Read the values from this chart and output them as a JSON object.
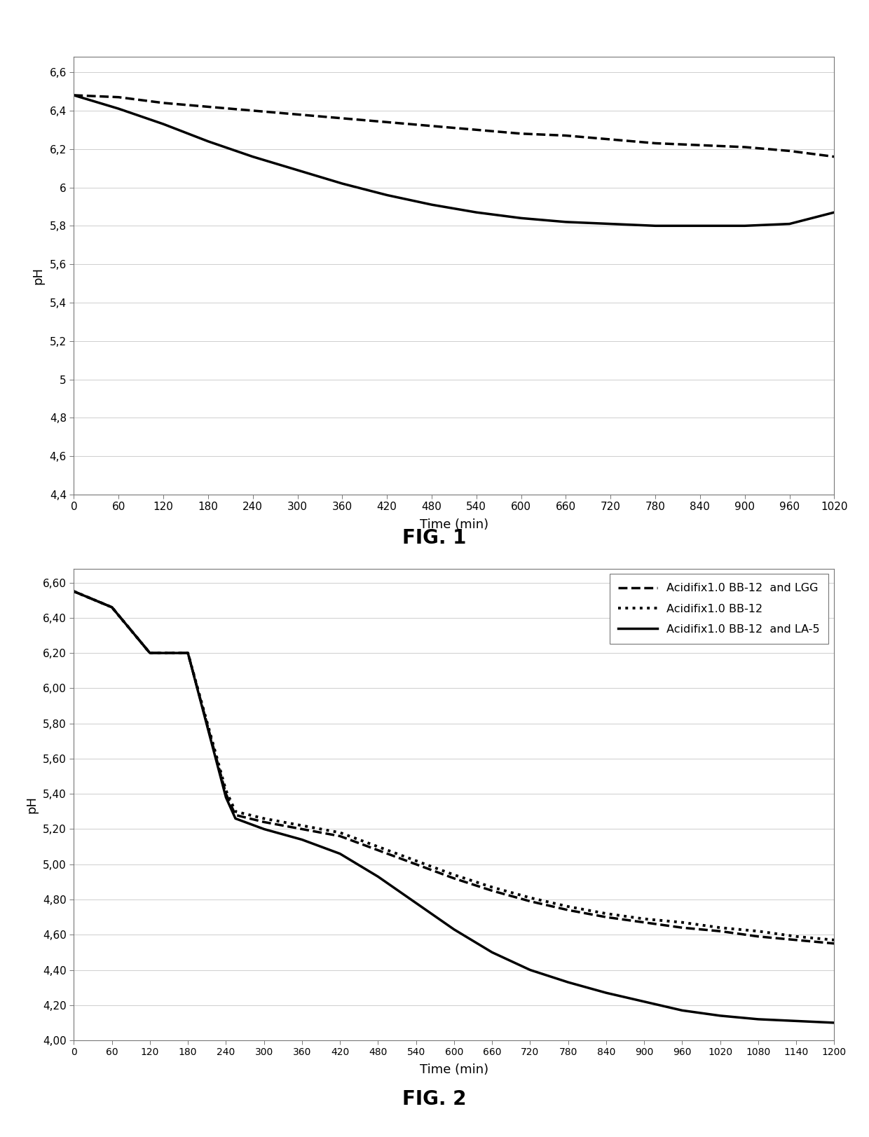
{
  "fig1": {
    "title": "FIG. 1",
    "xlabel": "Time (min)",
    "ylabel": "pH",
    "xlim": [
      0,
      1020
    ],
    "ylim": [
      4.4,
      6.68
    ],
    "xticks": [
      0,
      60,
      120,
      180,
      240,
      300,
      360,
      420,
      480,
      540,
      600,
      660,
      720,
      780,
      840,
      900,
      960,
      1020
    ],
    "yticks": [
      4.4,
      4.6,
      4.8,
      5.0,
      5.2,
      5.4,
      5.6,
      5.8,
      6.0,
      6.2,
      6.4,
      6.6
    ],
    "ytick_labels": [
      "4,4",
      "4,6",
      "4,8",
      "5",
      "5,2",
      "5,4",
      "5,6",
      "5,8",
      "6",
      "6,2",
      "6,4",
      "6,6"
    ],
    "series": [
      {
        "name": "dashed",
        "style": "--",
        "color": "#000000",
        "linewidth": 2.5,
        "x": [
          0,
          60,
          120,
          180,
          240,
          300,
          360,
          420,
          480,
          540,
          600,
          660,
          720,
          780,
          840,
          900,
          960,
          1020
        ],
        "y": [
          6.48,
          6.47,
          6.44,
          6.42,
          6.4,
          6.38,
          6.36,
          6.34,
          6.32,
          6.3,
          6.28,
          6.27,
          6.25,
          6.23,
          6.22,
          6.21,
          6.19,
          6.16
        ]
      },
      {
        "name": "solid",
        "style": "-",
        "color": "#000000",
        "linewidth": 2.5,
        "x": [
          0,
          60,
          120,
          180,
          240,
          300,
          360,
          420,
          480,
          540,
          600,
          660,
          720,
          780,
          840,
          900,
          960,
          1020
        ],
        "y": [
          6.48,
          6.41,
          6.33,
          6.24,
          6.16,
          6.09,
          6.02,
          5.96,
          5.91,
          5.87,
          5.84,
          5.82,
          5.81,
          5.8,
          5.8,
          5.8,
          5.81,
          5.87
        ]
      }
    ]
  },
  "fig2": {
    "title": "FIG. 2",
    "xlabel": "Time (min)",
    "ylabel": "pH",
    "xlim": [
      0,
      1200
    ],
    "ylim": [
      4.0,
      6.68
    ],
    "xticks": [
      0,
      60,
      120,
      180,
      240,
      300,
      360,
      420,
      480,
      540,
      600,
      660,
      720,
      780,
      840,
      900,
      960,
      1020,
      1080,
      1140,
      1200
    ],
    "xtick_labels": [
      "0",
      "60",
      "120",
      "180",
      "240",
      "300",
      "360",
      "420",
      "480",
      "540",
      "600",
      "660",
      "720",
      "780",
      "840",
      "900",
      "960",
      "1020",
      "1080",
      "1140",
      "1200"
    ],
    "yticks": [
      4.0,
      4.2,
      4.4,
      4.6,
      4.8,
      5.0,
      5.2,
      5.4,
      5.6,
      5.8,
      6.0,
      6.2,
      6.4,
      6.6
    ],
    "ytick_labels": [
      "4,00",
      "4,20",
      "4,40",
      "4,60",
      "4,80",
      "5,00",
      "5,20",
      "5,40",
      "5,60",
      "5,80",
      "6,00",
      "6,20",
      "6,40",
      "6,60"
    ],
    "legend": [
      {
        "label": "Acidifix1.0 BB-12  and LGG",
        "style": "--",
        "linewidth": 2.5
      },
      {
        "label": "Acidifix1.0 BB-12",
        "style": ":",
        "linewidth": 2.8
      },
      {
        "label": "Acidifix1.0 BB-12  and LA-5",
        "style": "-",
        "linewidth": 2.5
      }
    ],
    "series": [
      {
        "name": "dashed_lgg",
        "x": [
          0,
          60,
          120,
          180,
          240,
          255,
          300,
          360,
          420,
          480,
          540,
          600,
          660,
          720,
          780,
          840,
          900,
          960,
          1020,
          1080,
          1140,
          1200
        ],
        "y": [
          6.55,
          6.46,
          6.2,
          6.2,
          5.4,
          5.28,
          5.24,
          5.2,
          5.16,
          5.08,
          5.0,
          4.92,
          4.85,
          4.79,
          4.74,
          4.7,
          4.67,
          4.64,
          4.62,
          4.59,
          4.57,
          4.55
        ]
      },
      {
        "name": "dotted_bb12",
        "x": [
          0,
          60,
          120,
          180,
          240,
          255,
          300,
          360,
          420,
          480,
          540,
          600,
          660,
          720,
          780,
          840,
          900,
          960,
          1020,
          1080,
          1140,
          1200
        ],
        "y": [
          6.55,
          6.46,
          6.2,
          6.2,
          5.42,
          5.3,
          5.26,
          5.22,
          5.18,
          5.1,
          5.02,
          4.94,
          4.87,
          4.81,
          4.76,
          4.72,
          4.69,
          4.67,
          4.64,
          4.62,
          4.59,
          4.57
        ]
      },
      {
        "name": "solid_la5",
        "x": [
          0,
          60,
          120,
          180,
          240,
          255,
          300,
          360,
          420,
          480,
          540,
          600,
          660,
          720,
          780,
          840,
          900,
          960,
          1020,
          1080,
          1140,
          1200
        ],
        "y": [
          6.55,
          6.46,
          6.2,
          6.2,
          5.38,
          5.26,
          5.2,
          5.14,
          5.06,
          4.93,
          4.78,
          4.63,
          4.5,
          4.4,
          4.33,
          4.27,
          4.22,
          4.17,
          4.14,
          4.12,
          4.11,
          4.1
        ]
      }
    ]
  },
  "background_color": "#ffffff",
  "fig_label_fontsize": 20,
  "axis_label_fontsize": 13,
  "tick_fontsize": 11
}
